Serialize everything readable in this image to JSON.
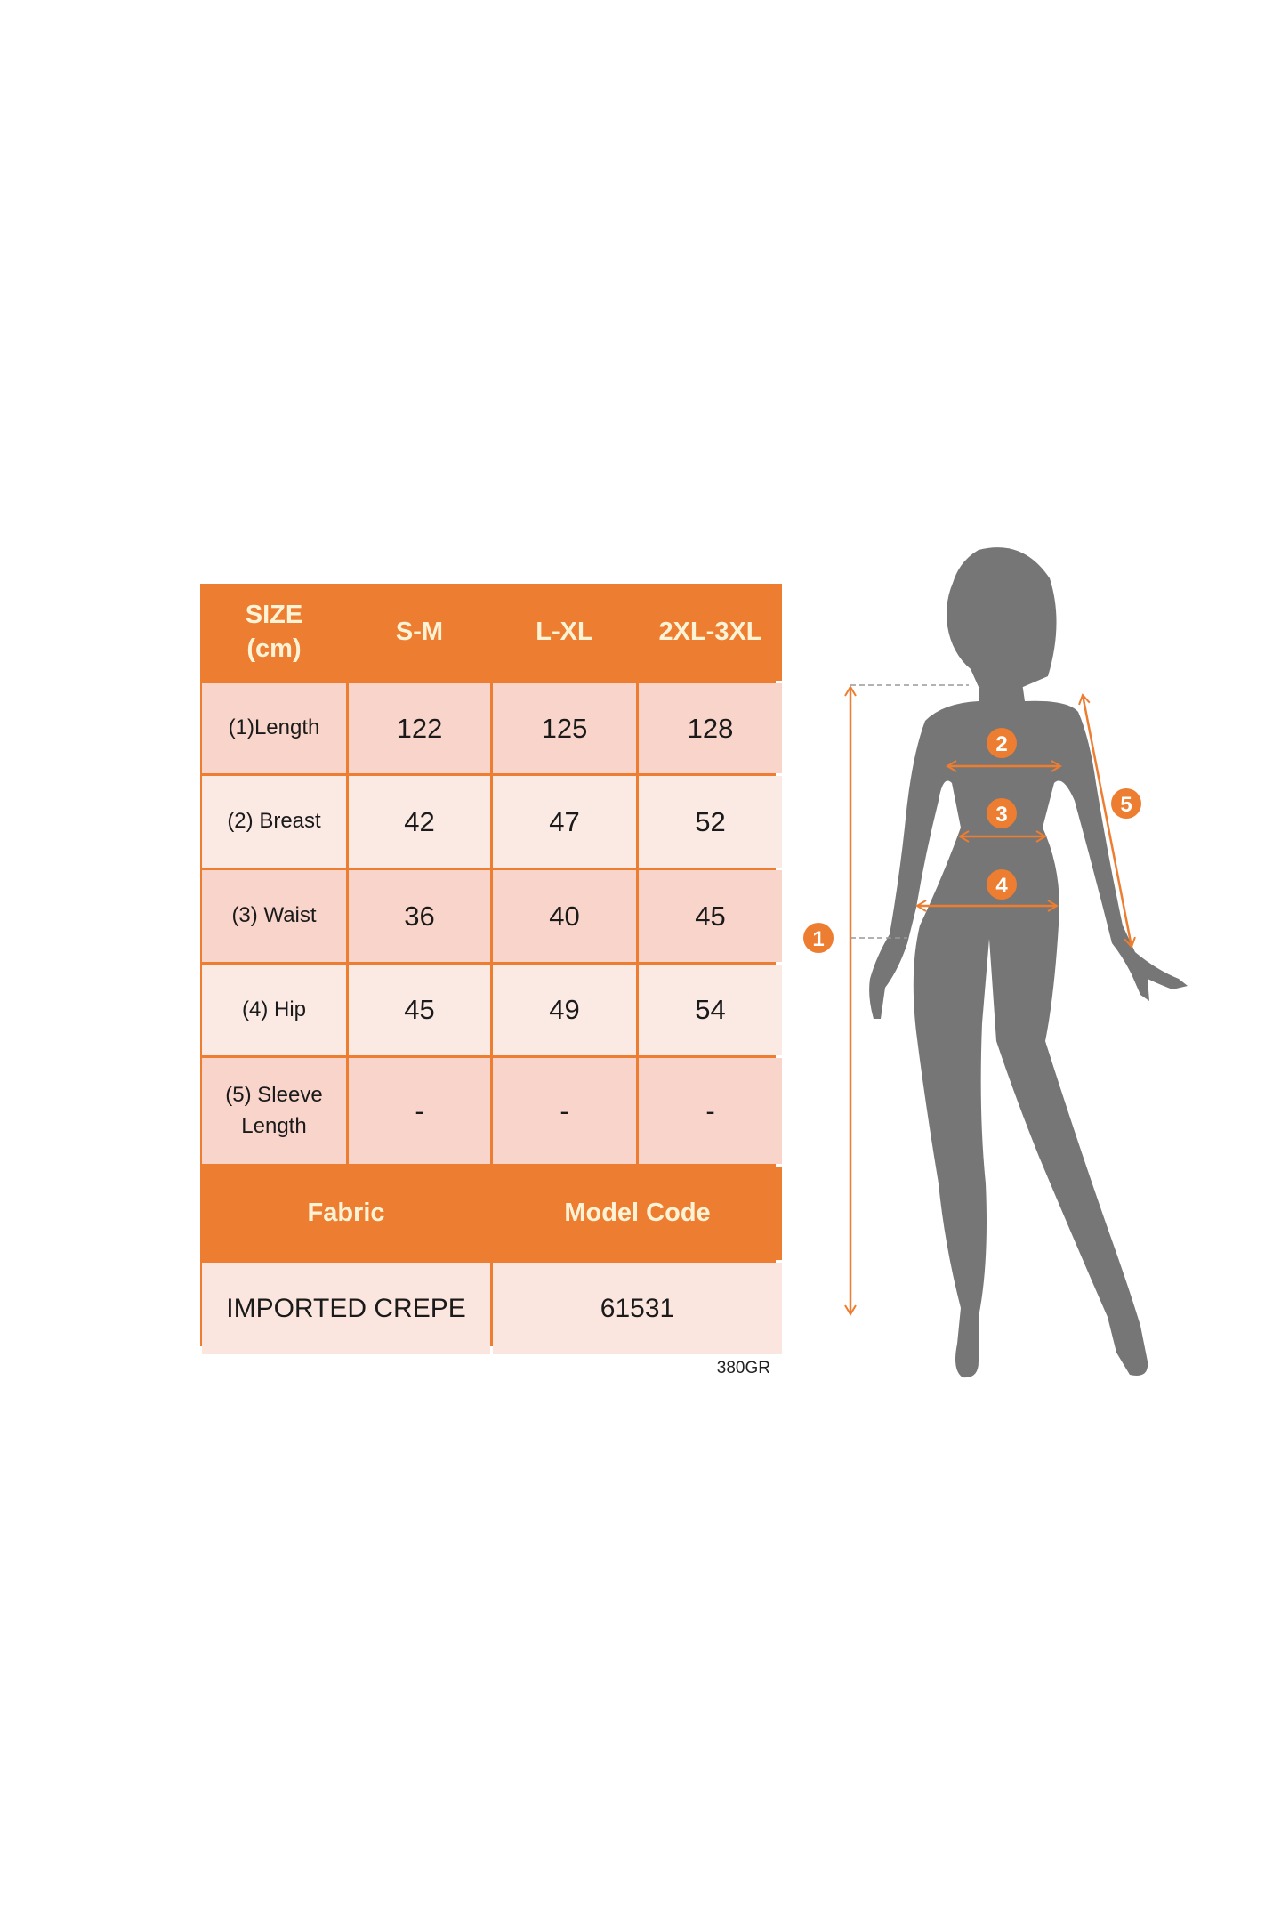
{
  "size_table": {
    "header": [
      "SIZE\n(cm)",
      "S-M",
      "L-XL",
      "2XL-3XL"
    ],
    "header_lines": [
      "SIZE",
      "(cm)"
    ],
    "rows": [
      {
        "label": "(1)Length",
        "values": [
          "122",
          "125",
          "128"
        ]
      },
      {
        "label": "(2) Breast",
        "values": [
          "42",
          "47",
          "52"
        ]
      },
      {
        "label": "(3) Waist",
        "values": [
          "36",
          "40",
          "45"
        ]
      },
      {
        "label": "(4) Hip",
        "values": [
          "45",
          "49",
          "54"
        ]
      },
      {
        "label_lines": [
          "(5) Sleeve",
          "Length"
        ],
        "values": [
          "-",
          "-",
          "-"
        ]
      }
    ],
    "info_headers": [
      "Fabric",
      "Model Code"
    ],
    "info_values": [
      "IMPORTED CREPE",
      "61531"
    ]
  },
  "weight_code": "380GR",
  "figure": {
    "markers": [
      "1",
      "2",
      "3",
      "4",
      "5"
    ]
  },
  "colors": {
    "accent": "#ED7D31",
    "cell_dark": "#F8D4CA",
    "cell_light": "#FBE9E4",
    "silhouette": "#767676",
    "header_text": "#FFF3D6"
  }
}
